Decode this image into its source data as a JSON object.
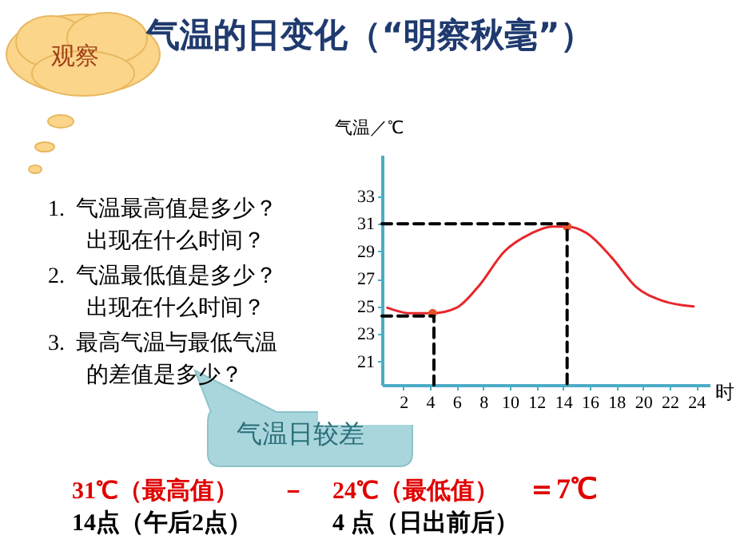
{
  "chart_data": {
    "type": "line",
    "title": "气温的日变化（“明察秋毫”）",
    "xlabel": "时",
    "ylabel": "气温／℃",
    "xlim": [
      0.4,
      25
    ],
    "xticks": [
      2,
      4,
      6,
      8,
      10,
      12,
      14,
      16,
      18,
      20,
      22,
      24
    ],
    "ylim": [
      19.3,
      36
    ],
    "yticks": [
      21,
      23,
      25,
      27,
      29,
      31,
      33
    ],
    "series": [
      {
        "color": "#e8262a",
        "x": [
          0.8,
          2.5,
          4.2,
          6.0,
          7.6,
          9.6,
          11.6,
          13.2,
          14.3,
          15.8,
          17.6,
          19.5,
          21.5,
          23.8
        ],
        "values": [
          24.9,
          24.5,
          24.5,
          24.9,
          26.4,
          29.0,
          30.3,
          30.8,
          30.8,
          30.3,
          28.6,
          26.4,
          25.4,
          25.0
        ]
      },
      {
        "type": "scatter",
        "color": "#e8502a",
        "marker": "circle",
        "x": [
          4.2,
          14.3
        ],
        "values": [
          24.5,
          30.8
        ]
      },
      {
        "color": "#000000",
        "line_style": "dashed",
        "x": [
          0.4,
          14.3,
          14.3
        ],
        "values": [
          31,
          31,
          19.3
        ]
      },
      {
        "color": "#000000",
        "line_style": "dashed",
        "x": [
          0.4,
          4.3,
          4.3
        ],
        "values": [
          24.3,
          24.3,
          19.3
        ]
      }
    ],
    "annotations": [
      "观察",
      "1.  气温最高值是多少？",
      "出现在什么时间？",
      "2.  气温最低值是多少？",
      "出现在什么时间？",
      "3.  最高气温与最低气温",
      "的差值是多少？",
      "气温日较差",
      "31℃（最高值）",
      "－",
      "24℃（最低值）",
      "＝7℃",
      "14点（午后2点）",
      "4 点（日出前后）"
    ]
  }
}
